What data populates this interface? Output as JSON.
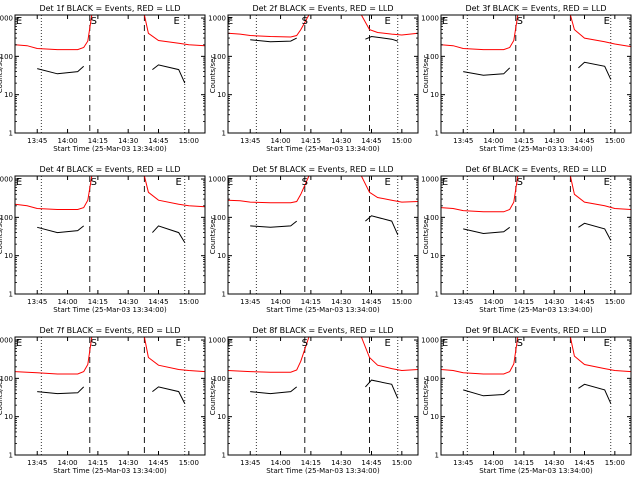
{
  "figure": {
    "background": "#ffffff",
    "axis_color": "#000000",
    "events_color": "#000000",
    "lld_color": "#ff0000"
  },
  "chart_data": [
    {
      "type": "line",
      "title": "Det 1f BLACK = Events, RED = LLD",
      "xlabel": "Start Time (25-Mar-03 13:34:00)",
      "ylabel": "Counts/sec",
      "x_ticks": [
        "13:45",
        "14:00",
        "14:15",
        "14:30",
        "14:45",
        "15:00"
      ],
      "y_ticks": [
        "1",
        "10",
        "100",
        "1000"
      ],
      "y_scale": "log",
      "ylim": [
        1,
        1200
      ],
      "markers": [
        {
          "label": "E",
          "x": "13:36"
        },
        {
          "label": "S",
          "x": "14:13"
        },
        {
          "label": "E",
          "x": "14:54"
        }
      ],
      "dotted_lines": [
        "13:47",
        "14:58"
      ],
      "dashed_lines": [
        "14:11",
        "14:38"
      ],
      "series": [
        {
          "name": "BLACK = Events",
          "x": [
            "13:34",
            "13:40",
            "13:42",
            "13:45",
            "13:55",
            "14:05",
            "14:08",
            "14:10",
            "14:40",
            "14:42",
            "14:45",
            "14:55",
            "14:58",
            "15:08"
          ],
          "values": [
            null,
            null,
            null,
            48,
            35,
            40,
            55,
            null,
            null,
            45,
            60,
            45,
            20,
            null
          ]
        },
        {
          "name": "RED = LLD",
          "x": [
            "13:34",
            "13:40",
            "13:45",
            "13:55",
            "14:05",
            "14:08",
            "14:10",
            "14:12",
            "14:38",
            "14:40",
            "14:45",
            "14:55",
            "15:00",
            "15:08"
          ],
          "values": [
            200,
            190,
            160,
            150,
            150,
            170,
            250,
            1200,
            1200,
            400,
            260,
            220,
            200,
            190
          ]
        }
      ]
    },
    {
      "type": "line",
      "title": "Det 2f BLACK = Events, RED = LLD",
      "xlabel": "Start Time (25-Mar-03 13:34:00)",
      "ylabel": "Counts/sec",
      "x_ticks": [
        "13:45",
        "14:00",
        "14:15",
        "14:30",
        "14:45",
        "15:00"
      ],
      "y_ticks": [
        "1",
        "10",
        "100",
        "1000"
      ],
      "y_scale": "log",
      "ylim": [
        1,
        1200
      ],
      "markers": [
        {
          "label": "E",
          "x": "13:35"
        },
        {
          "label": "S",
          "x": "14:12"
        },
        {
          "label": "E",
          "x": "14:53"
        }
      ],
      "dotted_lines": [
        "13:48",
        "14:58"
      ],
      "dashed_lines": [
        "14:12",
        "14:44"
      ],
      "series": [
        {
          "name": "BLACK = Events",
          "x": [
            "13:34",
            "13:40",
            "13:42",
            "13:45",
            "13:55",
            "14:05",
            "14:08",
            "14:10",
            "14:40",
            "14:42",
            "14:45",
            "14:55",
            "14:58",
            "15:08"
          ],
          "values": [
            null,
            null,
            null,
            270,
            240,
            250,
            300,
            null,
            null,
            280,
            330,
            280,
            250,
            null
          ]
        },
        {
          "name": "RED = LLD",
          "x": [
            "13:34",
            "13:40",
            "13:45",
            "13:55",
            "14:05",
            "14:08",
            "14:10",
            "14:14",
            "14:40",
            "14:44",
            "14:48",
            "14:55",
            "15:00",
            "15:08"
          ],
          "values": [
            400,
            380,
            350,
            330,
            320,
            350,
            500,
            1200,
            1200,
            500,
            420,
            380,
            360,
            400
          ]
        }
      ]
    },
    {
      "type": "line",
      "title": "Det 3f BLACK = Events, RED = LLD",
      "xlabel": "Start Time (25-Mar-03 13:34:00)",
      "ylabel": "Counts/sec",
      "x_ticks": [
        "13:45",
        "14:00",
        "14:15",
        "14:30",
        "14:45",
        "15:00"
      ],
      "y_ticks": [
        "1",
        "10",
        "100",
        "1000"
      ],
      "y_scale": "log",
      "ylim": [
        1,
        1200
      ],
      "markers": [
        {
          "label": "E",
          "x": "13:36"
        },
        {
          "label": "S",
          "x": "14:13"
        },
        {
          "label": "E",
          "x": "14:56"
        }
      ],
      "dotted_lines": [
        "13:47",
        "14:58"
      ],
      "dashed_lines": [
        "14:11",
        "14:38"
      ],
      "series": [
        {
          "name": "BLACK = Events",
          "x": [
            "13:34",
            "13:40",
            "13:42",
            "13:45",
            "13:55",
            "14:05",
            "14:08",
            "14:10",
            "14:40",
            "14:42",
            "14:45",
            "14:55",
            "14:58",
            "15:08"
          ],
          "values": [
            null,
            null,
            null,
            40,
            32,
            35,
            50,
            null,
            null,
            50,
            70,
            55,
            25,
            null
          ]
        },
        {
          "name": "RED = LLD",
          "x": [
            "13:34",
            "13:40",
            "13:45",
            "13:55",
            "14:05",
            "14:08",
            "14:10",
            "14:12",
            "14:38",
            "14:40",
            "14:45",
            "14:55",
            "15:00",
            "15:08"
          ],
          "values": [
            200,
            190,
            160,
            150,
            150,
            170,
            260,
            1200,
            1200,
            500,
            300,
            240,
            210,
            180
          ]
        }
      ]
    },
    {
      "type": "line",
      "title": "Det 4f BLACK = Events, RED = LLD",
      "xlabel": "Start Time (25-Mar-03 13:34:00)",
      "ylabel": "Counts/sec",
      "x_ticks": [
        "13:45",
        "14:00",
        "14:15",
        "14:30",
        "14:45",
        "15:00"
      ],
      "y_ticks": [
        "1",
        "10",
        "100",
        "1000"
      ],
      "y_scale": "log",
      "ylim": [
        1,
        1200
      ],
      "markers": [
        {
          "label": "E",
          "x": "13:36"
        },
        {
          "label": "S",
          "x": "14:13"
        },
        {
          "label": "E",
          "x": "14:55"
        }
      ],
      "dotted_lines": [
        "13:47",
        "14:58"
      ],
      "dashed_lines": [
        "14:11",
        "14:38"
      ],
      "series": [
        {
          "name": "BLACK = Events",
          "x": [
            "13:34",
            "13:40",
            "13:42",
            "13:45",
            "13:55",
            "14:05",
            "14:08",
            "14:10",
            "14:40",
            "14:42",
            "14:45",
            "14:55",
            "14:58",
            "15:08"
          ],
          "values": [
            null,
            null,
            null,
            55,
            40,
            45,
            60,
            null,
            null,
            40,
            60,
            40,
            22,
            null
          ]
        },
        {
          "name": "RED = LLD",
          "x": [
            "13:34",
            "13:40",
            "13:45",
            "13:55",
            "14:05",
            "14:08",
            "14:10",
            "14:12",
            "14:38",
            "14:40",
            "14:45",
            "14:55",
            "15:00",
            "15:08"
          ],
          "values": [
            220,
            200,
            170,
            160,
            160,
            180,
            280,
            1200,
            1200,
            450,
            280,
            220,
            200,
            190
          ]
        }
      ]
    },
    {
      "type": "line",
      "title": "Det 5f BLACK = Events, RED = LLD",
      "xlabel": "Start Time (25-Mar-03 13:34:00)",
      "ylabel": "Counts/sec",
      "x_ticks": [
        "13:45",
        "14:00",
        "14:15",
        "14:30",
        "14:45",
        "15:00"
      ],
      "y_ticks": [
        "1",
        "10",
        "100",
        "1000"
      ],
      "y_scale": "log",
      "ylim": [
        1,
        1200
      ],
      "markers": [
        {
          "label": "E",
          "x": "13:35"
        },
        {
          "label": "S",
          "x": "14:12"
        },
        {
          "label": "E",
          "x": "14:53"
        }
      ],
      "dotted_lines": [
        "13:48",
        "14:58"
      ],
      "dashed_lines": [
        "14:12",
        "14:44"
      ],
      "series": [
        {
          "name": "BLACK = Events",
          "x": [
            "13:34",
            "13:40",
            "13:42",
            "13:45",
            "13:55",
            "14:05",
            "14:08",
            "14:10",
            "14:40",
            "14:42",
            "14:45",
            "14:55",
            "14:58",
            "15:08"
          ],
          "values": [
            null,
            null,
            null,
            60,
            55,
            60,
            80,
            null,
            null,
            80,
            110,
            80,
            35,
            null
          ]
        },
        {
          "name": "RED = LLD",
          "x": [
            "13:34",
            "13:40",
            "13:45",
            "13:55",
            "14:05",
            "14:08",
            "14:10",
            "14:14",
            "14:40",
            "14:44",
            "14:48",
            "14:55",
            "15:00",
            "15:08"
          ],
          "values": [
            280,
            270,
            250,
            240,
            240,
            260,
            400,
            1200,
            1200,
            450,
            330,
            280,
            250,
            260
          ]
        }
      ]
    },
    {
      "type": "line",
      "title": "Det 6f BLACK = Events, RED = LLD",
      "xlabel": "Start Time (25-Mar-03 13:34:00)",
      "ylabel": "Counts/sec",
      "x_ticks": [
        "13:45",
        "14:00",
        "14:15",
        "14:30",
        "14:45",
        "15:00"
      ],
      "y_ticks": [
        "1",
        "10",
        "100",
        "1000"
      ],
      "y_scale": "log",
      "ylim": [
        1,
        1200
      ],
      "markers": [
        {
          "label": "E",
          "x": "13:36"
        },
        {
          "label": "S",
          "x": "14:13"
        },
        {
          "label": "E",
          "x": "14:56"
        }
      ],
      "dotted_lines": [
        "13:47",
        "14:58"
      ],
      "dashed_lines": [
        "14:11",
        "14:38"
      ],
      "series": [
        {
          "name": "BLACK = Events",
          "x": [
            "13:34",
            "13:40",
            "13:42",
            "13:45",
            "13:55",
            "14:05",
            "14:08",
            "14:10",
            "14:40",
            "14:42",
            "14:45",
            "14:55",
            "14:58",
            "15:08"
          ],
          "values": [
            null,
            null,
            null,
            50,
            38,
            42,
            55,
            null,
            null,
            55,
            70,
            50,
            25,
            null
          ]
        },
        {
          "name": "RED = LLD",
          "x": [
            "13:34",
            "13:40",
            "13:45",
            "13:55",
            "14:05",
            "14:08",
            "14:10",
            "14:12",
            "14:38",
            "14:40",
            "14:45",
            "14:55",
            "15:00",
            "15:08"
          ],
          "values": [
            180,
            170,
            150,
            140,
            140,
            160,
            250,
            1200,
            1200,
            400,
            250,
            200,
            170,
            160
          ]
        }
      ]
    },
    {
      "type": "line",
      "title": "Det 7f BLACK = Events, RED = LLD",
      "xlabel": "Start Time (25-Mar-03 13:34:00)",
      "ylabel": "Counts/sec",
      "x_ticks": [
        "13:45",
        "14:00",
        "14:15",
        "14:30",
        "14:45",
        "15:00"
      ],
      "y_ticks": [
        "1",
        "10",
        "100",
        "1000"
      ],
      "y_scale": "log",
      "ylim": [
        1,
        1200
      ],
      "markers": [
        {
          "label": "E",
          "x": "13:36"
        },
        {
          "label": "S",
          "x": "14:13"
        },
        {
          "label": "E",
          "x": "14:55"
        }
      ],
      "dotted_lines": [
        "13:47",
        "14:58"
      ],
      "dashed_lines": [
        "14:11",
        "14:38"
      ],
      "series": [
        {
          "name": "BLACK = Events",
          "x": [
            "13:34",
            "13:40",
            "13:42",
            "13:45",
            "13:55",
            "14:05",
            "14:08",
            "14:10",
            "14:40",
            "14:42",
            "14:45",
            "14:55",
            "14:58",
            "15:08"
          ],
          "values": [
            null,
            null,
            null,
            45,
            40,
            42,
            60,
            null,
            null,
            45,
            60,
            45,
            22,
            null
          ]
        },
        {
          "name": "RED = LLD",
          "x": [
            "13:34",
            "13:40",
            "13:45",
            "13:55",
            "14:05",
            "14:08",
            "14:10",
            "14:12",
            "14:38",
            "14:40",
            "14:45",
            "14:55",
            "15:00",
            "15:08"
          ],
          "values": [
            150,
            145,
            140,
            130,
            130,
            150,
            230,
            1200,
            1200,
            350,
            220,
            170,
            160,
            150
          ]
        }
      ]
    },
    {
      "type": "line",
      "title": "Det 8f BLACK = Events, RED = LLD",
      "xlabel": "Start Time (25-Mar-03 13:34:00)",
      "ylabel": "Counts/sec",
      "x_ticks": [
        "13:45",
        "14:00",
        "14:15",
        "14:30",
        "14:45",
        "15:00"
      ],
      "y_ticks": [
        "1",
        "10",
        "100",
        "1000"
      ],
      "y_scale": "log",
      "ylim": [
        1,
        1200
      ],
      "markers": [
        {
          "label": "E",
          "x": "13:35"
        },
        {
          "label": "S",
          "x": "14:12"
        },
        {
          "label": "E",
          "x": "14:53"
        }
      ],
      "dotted_lines": [
        "13:48",
        "14:58"
      ],
      "dashed_lines": [
        "14:12",
        "14:44"
      ],
      "series": [
        {
          "name": "BLACK = Events",
          "x": [
            "13:34",
            "13:40",
            "13:42",
            "13:45",
            "13:55",
            "14:05",
            "14:08",
            "14:10",
            "14:40",
            "14:42",
            "14:45",
            "14:55",
            "14:58",
            "15:08"
          ],
          "values": [
            null,
            null,
            null,
            45,
            40,
            45,
            60,
            null,
            null,
            60,
            90,
            70,
            30,
            null
          ]
        },
        {
          "name": "RED = LLD",
          "x": [
            "13:34",
            "13:40",
            "13:45",
            "13:55",
            "14:05",
            "14:08",
            "14:10",
            "14:14",
            "14:40",
            "14:44",
            "14:48",
            "14:55",
            "15:00",
            "15:08"
          ],
          "values": [
            160,
            155,
            150,
            145,
            145,
            165,
            280,
            1200,
            1200,
            350,
            220,
            180,
            160,
            170
          ]
        }
      ]
    },
    {
      "type": "line",
      "title": "Det 9f BLACK = Events, RED = LLD",
      "xlabel": "Start Time (25-Mar-03 13:34:00)",
      "ylabel": "Counts/sec",
      "x_ticks": [
        "13:45",
        "14:00",
        "14:15",
        "14:30",
        "14:45",
        "15:00"
      ],
      "y_ticks": [
        "1",
        "10",
        "100",
        "1000"
      ],
      "y_scale": "log",
      "ylim": [
        1,
        1200
      ],
      "markers": [
        {
          "label": "E",
          "x": "13:36"
        },
        {
          "label": "S",
          "x": "14:13"
        },
        {
          "label": "E",
          "x": "14:56"
        }
      ],
      "dotted_lines": [
        "13:47",
        "14:58"
      ],
      "dashed_lines": [
        "14:11",
        "14:38"
      ],
      "series": [
        {
          "name": "BLACK = Events",
          "x": [
            "13:34",
            "13:40",
            "13:42",
            "13:45",
            "13:55",
            "14:05",
            "14:08",
            "14:10",
            "14:40",
            "14:42",
            "14:45",
            "14:55",
            "14:58",
            "15:08"
          ],
          "values": [
            null,
            null,
            null,
            50,
            35,
            38,
            50,
            null,
            null,
            55,
            70,
            50,
            22,
            null
          ]
        },
        {
          "name": "RED = LLD",
          "x": [
            "13:34",
            "13:40",
            "13:45",
            "13:55",
            "14:05",
            "14:08",
            "14:10",
            "14:12",
            "14:38",
            "14:40",
            "14:45",
            "14:55",
            "15:00",
            "15:08"
          ],
          "values": [
            170,
            160,
            140,
            130,
            130,
            150,
            240,
            1200,
            1200,
            380,
            230,
            180,
            160,
            150
          ]
        }
      ]
    }
  ]
}
